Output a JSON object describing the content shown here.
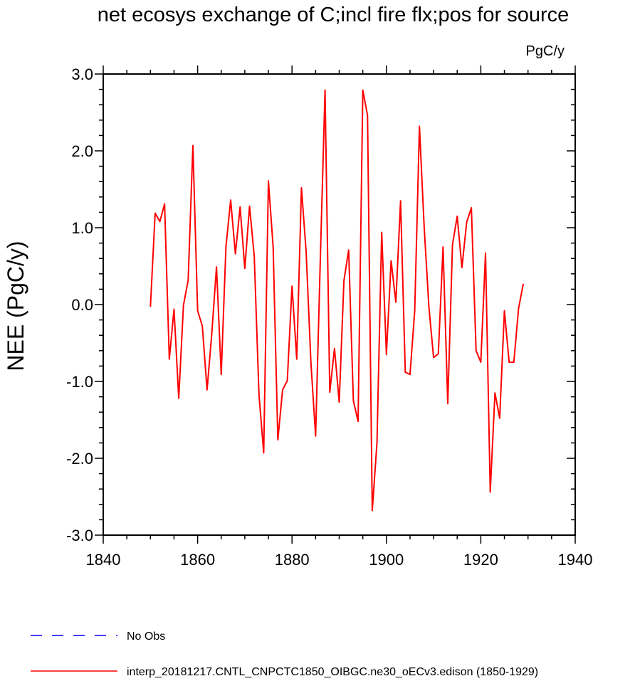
{
  "chart_data": {
    "type": "line",
    "title": "net ecosys exchange of C;incl fire flx;pos for source",
    "units": "PgC/y",
    "ylabel": "NEE  (PgC/y)",
    "xlabel": "",
    "xlim": [
      1840,
      1940
    ],
    "ylim": [
      -3.0,
      3.0
    ],
    "x_ticks": [
      1840,
      1860,
      1880,
      1900,
      1920,
      1940
    ],
    "x_tick_labels": [
      "1840",
      "1860",
      "1880",
      "1900",
      "1920",
      "1940"
    ],
    "y_ticks": [
      3.0,
      2.0,
      1.0,
      0.0,
      -1.0,
      -2.0,
      -3.0
    ],
    "y_tick_labels": [
      "3.0",
      "2.0",
      "1.0",
      "0.0",
      "-1.0",
      "-2.0",
      "-3.0"
    ],
    "grid": false,
    "legend_position": "bottom-left",
    "series": [
      {
        "name": "No Obs",
        "color": "#0000ff",
        "style": "dashed",
        "x": [],
        "values": []
      },
      {
        "name": "interp_20181217.CNTL_CNPCTC1850_OIBGC.ne30_oECv3.edison (1850-1929)",
        "color": "#ff0000",
        "style": "solid",
        "x": [
          1850,
          1851,
          1852,
          1853,
          1854,
          1855,
          1856,
          1857,
          1858,
          1859,
          1860,
          1861,
          1862,
          1863,
          1864,
          1865,
          1866,
          1867,
          1868,
          1869,
          1870,
          1871,
          1872,
          1873,
          1874,
          1875,
          1876,
          1877,
          1878,
          1879,
          1880,
          1881,
          1882,
          1883,
          1884,
          1885,
          1886,
          1887,
          1888,
          1889,
          1890,
          1891,
          1892,
          1893,
          1894,
          1895,
          1896,
          1897,
          1898,
          1899,
          1900,
          1901,
          1902,
          1903,
          1904,
          1905,
          1906,
          1907,
          1908,
          1909,
          1910,
          1911,
          1912,
          1913,
          1914,
          1915,
          1916,
          1917,
          1918,
          1919,
          1920,
          1921,
          1922,
          1923,
          1924,
          1925,
          1926,
          1927,
          1928,
          1929
        ],
        "values": [
          -0.03,
          1.19,
          1.08,
          1.31,
          -0.71,
          -0.06,
          -1.22,
          -0.01,
          0.32,
          2.07,
          -0.08,
          -0.28,
          -1.11,
          -0.38,
          0.49,
          -0.91,
          0.75,
          1.36,
          0.66,
          1.27,
          0.47,
          1.28,
          0.63,
          -1.17,
          -1.93,
          1.61,
          0.75,
          -1.76,
          -1.11,
          -0.99,
          0.24,
          -0.71,
          1.52,
          0.68,
          -0.75,
          -1.71,
          0.6,
          2.79,
          -1.14,
          -0.57,
          -1.27,
          0.31,
          0.71,
          -1.25,
          -1.52,
          2.79,
          2.46,
          -2.68,
          -1.8,
          0.94,
          -0.65,
          0.57,
          0.03,
          1.35,
          -0.88,
          -0.91,
          -0.08,
          2.32,
          1.01,
          -0.03,
          -0.69,
          -0.64,
          0.75,
          -1.29,
          0.78,
          1.15,
          0.48,
          1.07,
          1.26,
          -0.6,
          -0.75,
          0.67,
          -2.44,
          -1.15,
          -1.48,
          -0.08,
          -0.75,
          -0.75,
          -0.05,
          0.27
        ]
      }
    ]
  }
}
